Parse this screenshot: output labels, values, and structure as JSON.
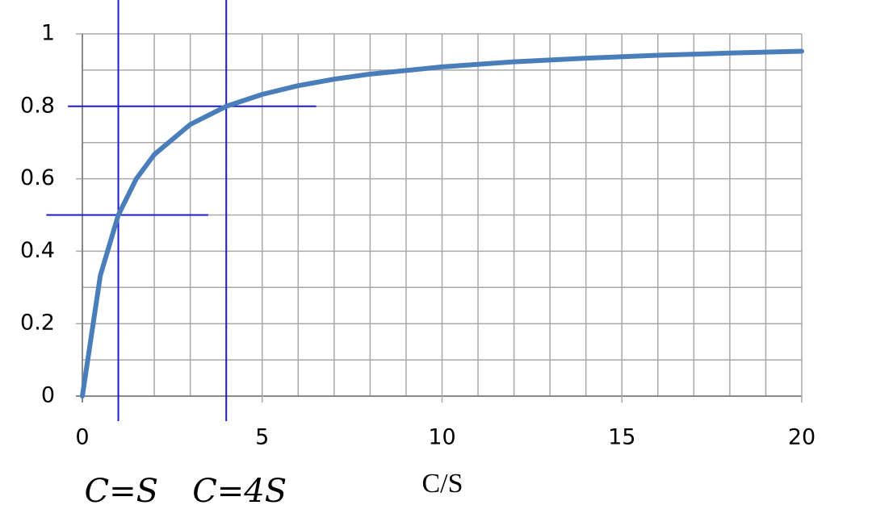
{
  "chart_data": {
    "type": "line",
    "x_label": "C/S",
    "annotations": [
      {
        "text": "C=S",
        "x": 1
      },
      {
        "text": "C=4S",
        "x": 4
      }
    ],
    "x": [
      0,
      0.5,
      1,
      1.5,
      2,
      3,
      4,
      5,
      6,
      7,
      8,
      10,
      12,
      14,
      16,
      18,
      20
    ],
    "series": [
      {
        "color": "#4a7ebb",
        "values": [
          0,
          0.333,
          0.5,
          0.6,
          0.667,
          0.75,
          0.8,
          0.833,
          0.857,
          0.875,
          0.889,
          0.909,
          0.923,
          0.933,
          0.941,
          0.947,
          0.952
        ]
      }
    ],
    "xlim": [
      0,
      20
    ],
    "ylim": [
      0,
      1
    ],
    "xticks": [
      0,
      5,
      10,
      15,
      20
    ],
    "yticks": [
      0,
      0.2,
      0.4,
      0.6,
      0.8,
      1
    ],
    "minor_xticks": [
      1,
      2,
      3,
      4,
      6,
      7,
      8,
      9,
      11,
      12,
      13,
      14,
      16,
      17,
      18,
      19
    ],
    "minor_yticks": [
      0.1,
      0.3,
      0.5,
      0.7,
      0.9
    ],
    "grid": true,
    "vlines": [
      1,
      4
    ],
    "hlines": [
      {
        "value": 0.5,
        "xlim": [
          -1,
          3.5
        ]
      },
      {
        "value": 0.8,
        "xlim": [
          -0.4,
          6.5
        ]
      }
    ]
  }
}
